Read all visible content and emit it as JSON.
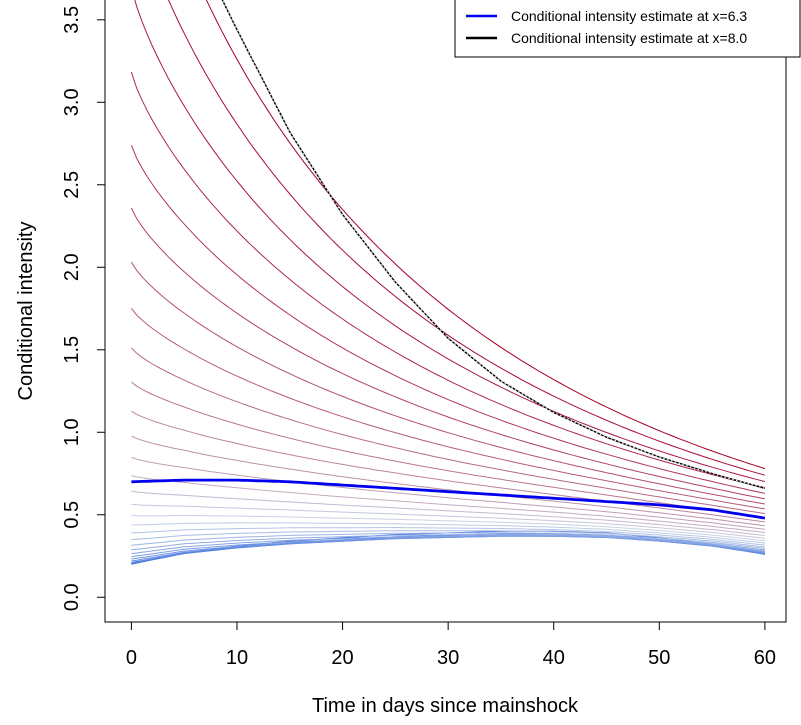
{
  "chart_data": {
    "type": "line",
    "xlabel": "Time in days since mainshock",
    "ylabel": "Conditional intensity",
    "xlim": [
      -2.5,
      62
    ],
    "ylim": [
      -0.15,
      3.62
    ],
    "x_ticks": [
      "0",
      "10",
      "20",
      "30",
      "40",
      "50",
      "60"
    ],
    "y_ticks": [
      "0.0",
      "0.5",
      "1.0",
      "1.5",
      "2.0",
      "2.5",
      "3.0",
      "3.5"
    ],
    "grid": false,
    "legend_position": "top-right",
    "legend": [
      {
        "label": "Conditional intensity estimate at x=6.3",
        "color": "#0000ee"
      },
      {
        "label": "Conditional intensity estimate at x=8.0",
        "color": "#000000"
      }
    ],
    "background_family": {
      "description": "curves from blue (low x) to red (high x)",
      "curve_count": 30,
      "t": [
        0,
        5,
        10,
        15,
        20,
        25,
        30,
        35,
        40,
        45,
        50,
        55,
        60
      ],
      "low_curve": [
        0.2,
        0.27,
        0.31,
        0.34,
        0.36,
        0.38,
        0.39,
        0.4,
        0.4,
        0.39,
        0.36,
        0.32,
        0.26
      ],
      "high_curve_start": 5.0,
      "high_curve_end": 0.78,
      "color_low": "#3a6fe0",
      "color_mid": "#c9d3e6",
      "color_high": "#a50026"
    },
    "series": [
      {
        "name": "Conditional intensity estimate at x=6.3",
        "color": "#0000ee",
        "x": [
          0,
          5,
          10,
          15,
          20,
          25,
          30,
          35,
          40,
          45,
          50,
          55,
          60
        ],
        "y": [
          0.7,
          0.71,
          0.71,
          0.7,
          0.68,
          0.66,
          0.64,
          0.62,
          0.6,
          0.58,
          0.56,
          0.53,
          0.48
        ]
      },
      {
        "name": "Conditional intensity estimate at x=8.0",
        "color": "#000000",
        "x": [
          8,
          10,
          15,
          20,
          25,
          30,
          35,
          40,
          45,
          50,
          55,
          60
        ],
        "y": [
          3.7,
          3.44,
          2.82,
          2.32,
          1.91,
          1.57,
          1.31,
          1.12,
          0.97,
          0.85,
          0.75,
          0.66
        ]
      }
    ]
  }
}
